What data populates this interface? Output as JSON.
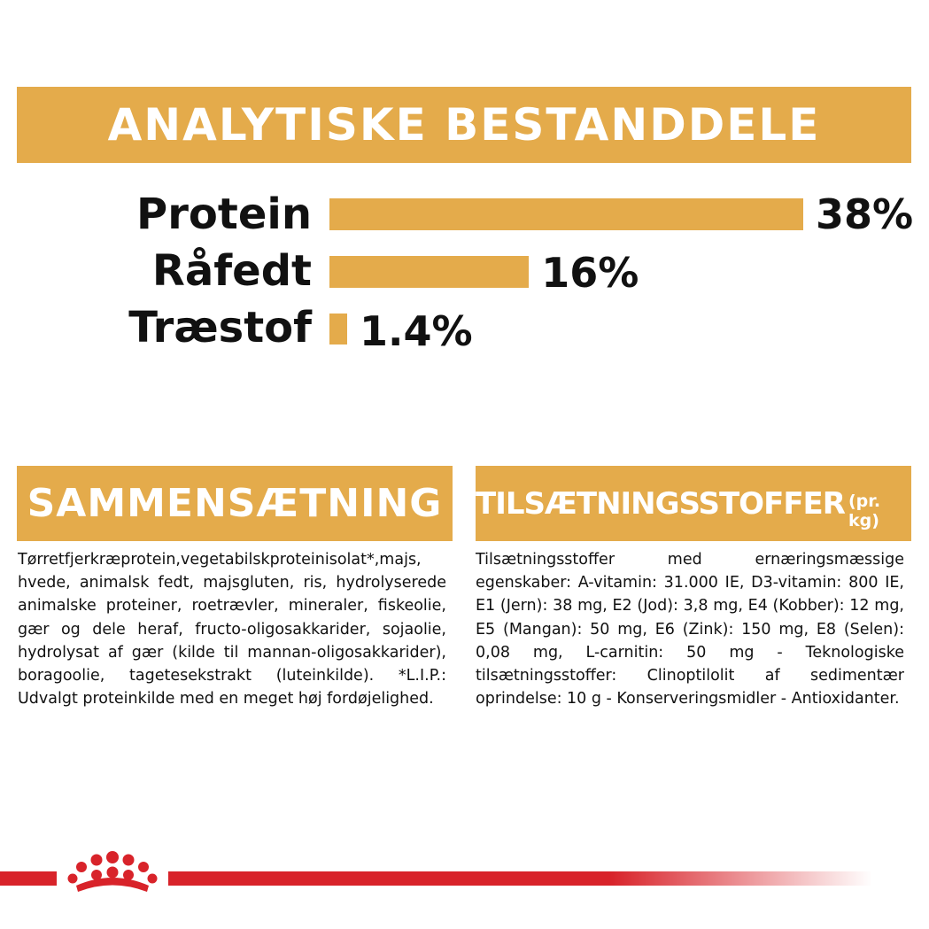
{
  "header": {
    "title": "ANALYTISKE BESTANDDELE"
  },
  "colors": {
    "accent": "#e4ab4b",
    "brand_red": "#d8232a",
    "text": "#111111"
  },
  "analysis": {
    "rows": [
      {
        "label": "Protein",
        "value_text": "38%",
        "value": 38
      },
      {
        "label": "Råfedt",
        "value_text": "16%",
        "value": 16
      },
      {
        "label": "Træstof",
        "value_text": "1.4%",
        "value": 1.4
      }
    ]
  },
  "composition": {
    "heading": "SAMMENSÆTNING",
    "text": "Tørretfjerkræprotein,vegetabilskproteinisolat*,majs, hvede, animalsk fedt, majsgluten, ris, hydrolyserede animalske proteiner, roetrævler, mineraler, fiskeolie, gær og dele heraf, fructo-oligosakkarider, sojaolie, hydrolysat af gær (kilde til mannan-oligosakkarider), boragoolie, tagetesekstrakt (luteinkilde). *L.I.P.: Udvalgt proteinkilde med en meget høj fordøjelighed."
  },
  "additives": {
    "heading": "TILSÆTNINGSSTOFFER",
    "heading_suffix": "(pr. kg)",
    "text": "Tilsætningsstoffer med ernæringsmæssige egenskaber: A-vitamin: 31.000 IE, D3-vitamin: 800 IE, E1 (Jern): 38 mg, E2 (Jod): 3,8 mg, E4 (Kobber): 12 mg, E5 (Mangan): 50 mg, E6 (Zink): 150 mg, E8 (Selen): 0,08 mg, L-carnitin: 50 mg - Teknologiske tilsætningsstoffer: Clinoptilolit af sedimentær oprindelse: 10 g - Konserveringsmidler - Antioxidanter."
  },
  "footer": {
    "logo_icon": "royal-canin-crown-icon"
  }
}
